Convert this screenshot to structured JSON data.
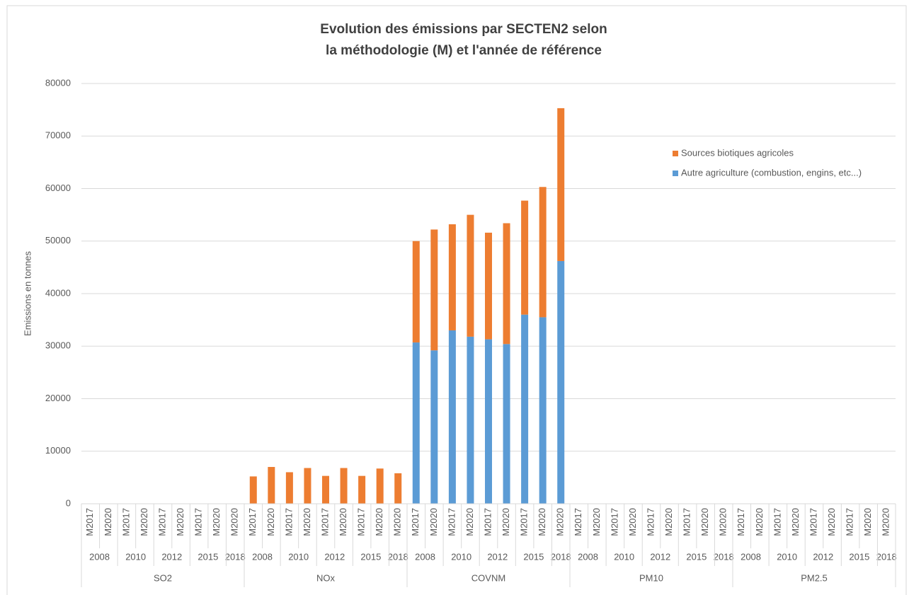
{
  "chart_data": {
    "type": "stacked_bar",
    "title": [
      "Evolution des émissions par SECTEN2 selon",
      "la méthodologie (M) et l'année de référence"
    ],
    "y_label": "Emissions en tonnes",
    "groups": [
      {
        "name": "SO2",
        "subgroups": [
          {
            "name": "2008",
            "categories": [
              "M2017",
              "M2020"
            ]
          },
          {
            "name": "2010",
            "categories": [
              "M2017",
              "M2020"
            ]
          },
          {
            "name": "2012",
            "categories": [
              "M2017",
              "M2020"
            ]
          },
          {
            "name": "2015",
            "categories": [
              "M2017",
              "M2020"
            ]
          },
          {
            "name": "2018",
            "categories": [
              "M2020"
            ]
          }
        ]
      },
      {
        "name": "NOx",
        "subgroups": [
          {
            "name": "2008",
            "categories": [
              "M2017",
              "M2020"
            ]
          },
          {
            "name": "2010",
            "categories": [
              "M2017",
              "M2020"
            ]
          },
          {
            "name": "2012",
            "categories": [
              "M2017",
              "M2020"
            ]
          },
          {
            "name": "2015",
            "categories": [
              "M2017",
              "M2020"
            ]
          },
          {
            "name": "2018",
            "categories": [
              "M2020"
            ]
          }
        ]
      },
      {
        "name": "COVNM",
        "subgroups": [
          {
            "name": "2008",
            "categories": [
              "M2017",
              "M2020"
            ]
          },
          {
            "name": "2010",
            "categories": [
              "M2017",
              "M2020"
            ]
          },
          {
            "name": "2012",
            "categories": [
              "M2017",
              "M2020"
            ]
          },
          {
            "name": "2015",
            "categories": [
              "M2017",
              "M2020"
            ]
          },
          {
            "name": "2018",
            "categories": [
              "M2020"
            ]
          }
        ]
      },
      {
        "name": "PM10",
        "subgroups": [
          {
            "name": "2008",
            "categories": [
              "M2017",
              "M2020"
            ]
          },
          {
            "name": "2010",
            "categories": [
              "M2017",
              "M2020"
            ]
          },
          {
            "name": "2012",
            "categories": [
              "M2017",
              "M2020"
            ]
          },
          {
            "name": "2015",
            "categories": [
              "M2017",
              "M2020"
            ]
          },
          {
            "name": "2018",
            "categories": [
              "M2020"
            ]
          }
        ]
      },
      {
        "name": "PM2.5",
        "subgroups": [
          {
            "name": "2008",
            "categories": [
              "M2017",
              "M2020"
            ]
          },
          {
            "name": "2010",
            "categories": [
              "M2017",
              "M2020"
            ]
          },
          {
            "name": "2012",
            "categories": [
              "M2017",
              "M2020"
            ]
          },
          {
            "name": "2015",
            "categories": [
              "M2017",
              "M2020"
            ]
          },
          {
            "name": "2018",
            "categories": [
              "M2020"
            ]
          }
        ]
      }
    ],
    "series": [
      {
        "name": "Autre agriculture (combustion, engins, etc...)",
        "color": "#5b9bd5",
        "values": [
          0,
          0,
          0,
          0,
          0,
          0,
          0,
          0,
          0,
          0,
          0,
          0,
          0,
          0,
          0,
          0,
          0,
          0,
          30700,
          29200,
          33000,
          31800,
          31300,
          30400,
          36000,
          35500,
          46200,
          0,
          0,
          0,
          0,
          0,
          0,
          0,
          0,
          0,
          0,
          0,
          0,
          0,
          0,
          0,
          0,
          0,
          0
        ]
      },
      {
        "name": "Sources biotiques agricoles",
        "color": "#ed7d31",
        "values": [
          0,
          0,
          0,
          0,
          0,
          0,
          0,
          0,
          0,
          5200,
          7000,
          6000,
          6800,
          5300,
          6800,
          5300,
          6700,
          5800,
          19300,
          23000,
          20200,
          23200,
          20300,
          23000,
          21700,
          24800,
          29100,
          0,
          0,
          0,
          0,
          0,
          0,
          0,
          0,
          0,
          0,
          0,
          0,
          0,
          0,
          0,
          0,
          0,
          0
        ]
      }
    ],
    "ylim": [
      0,
      80000
    ],
    "yticks": [
      0,
      10000,
      20000,
      30000,
      40000,
      50000,
      60000,
      70000,
      80000
    ],
    "grid": true
  }
}
